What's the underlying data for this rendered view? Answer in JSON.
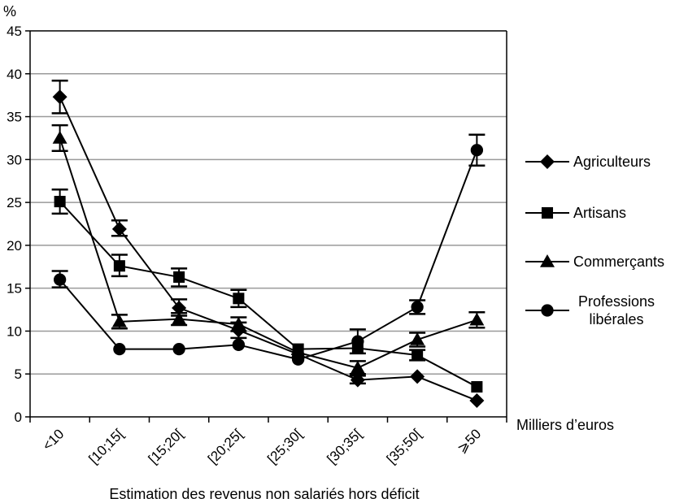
{
  "chart_data": {
    "type": "line",
    "title": "",
    "ylabel": "%",
    "xlabel": "Estimation des revenus non salariés hors déficit",
    "x_unit_label": "Milliers d’euros",
    "ylim": [
      0,
      45
    ],
    "yticks": [
      0,
      5,
      10,
      15,
      20,
      25,
      30,
      35,
      40,
      45
    ],
    "grid": true,
    "legend_position": "right",
    "categories": [
      "<10",
      "[10;15[",
      "[15;20[",
      "[20;25[",
      "[25;30[",
      "[30;35[",
      "[35;50[",
      "⩾50"
    ],
    "series": [
      {
        "name": "Agriculteurs",
        "marker": "diamond",
        "values": [
          37.3,
          21.9,
          12.7,
          10.1,
          7.3,
          4.3,
          4.7,
          1.9
        ],
        "err_low": [
          35.4,
          21.1,
          11.8,
          9.2,
          null,
          3.9,
          null,
          null
        ],
        "err_high": [
          39.2,
          22.9,
          13.7,
          11.0,
          null,
          4.8,
          null,
          null
        ]
      },
      {
        "name": "Artisans",
        "marker": "square",
        "values": [
          25.1,
          17.6,
          16.3,
          13.8,
          7.9,
          8.0,
          7.2,
          3.5
        ],
        "err_low": [
          23.7,
          16.4,
          15.2,
          12.8,
          null,
          null,
          6.6,
          null
        ],
        "err_high": [
          26.5,
          18.9,
          17.3,
          14.8,
          null,
          null,
          7.8,
          null
        ]
      },
      {
        "name": "Commerçants",
        "marker": "triangle",
        "values": [
          32.5,
          11.1,
          11.4,
          10.8,
          7.5,
          5.7,
          9.0,
          11.3
        ],
        "err_low": [
          31.0,
          10.3,
          10.7,
          10.0,
          null,
          5.0,
          8.2,
          10.4
        ],
        "err_high": [
          34.0,
          11.9,
          12.1,
          11.6,
          null,
          6.5,
          9.8,
          12.2
        ]
      },
      {
        "name": "Professions libérales",
        "marker": "circle",
        "values": [
          16.0,
          7.9,
          7.9,
          8.4,
          6.7,
          8.8,
          12.8,
          31.1
        ],
        "err_low": [
          15.1,
          null,
          null,
          null,
          null,
          7.4,
          12.0,
          29.3
        ],
        "err_high": [
          17.0,
          null,
          null,
          null,
          null,
          10.2,
          13.6,
          32.9
        ]
      }
    ],
    "legend": [
      {
        "lines": [
          "Agriculteurs"
        ]
      },
      {
        "lines": [
          "Artisans"
        ]
      },
      {
        "lines": [
          "Commerçants"
        ]
      },
      {
        "lines": [
          "Professions",
          "libérales"
        ]
      }
    ]
  }
}
